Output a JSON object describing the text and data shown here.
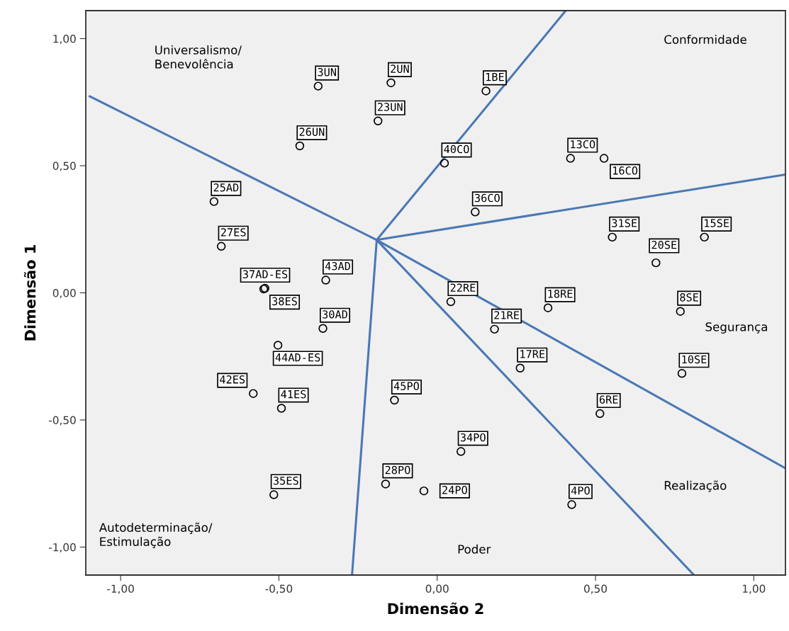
{
  "chart_data": {
    "type": "scatter",
    "xlabel": "Dimensão 2",
    "ylabel": "Dimensão 1",
    "xlim": [
      -1.11,
      1.1
    ],
    "ylim": [
      -1.11,
      1.11
    ],
    "xticks": [
      {
        "value": -1.0,
        "label": "-1,00"
      },
      {
        "value": -0.5,
        "label": "-0,50"
      },
      {
        "value": 0,
        "label": "0,00"
      },
      {
        "value": 0.5,
        "label": "0,50"
      },
      {
        "value": 1.0,
        "label": "1,00"
      }
    ],
    "yticks": [
      {
        "value": -1.0,
        "label": "-1,00"
      },
      {
        "value": -0.5,
        "label": "-0,50"
      },
      {
        "value": 0,
        "label": "0,00"
      },
      {
        "value": 0.5,
        "label": "0,50"
      },
      {
        "value": 1.0,
        "label": "1,00"
      }
    ],
    "grid": false,
    "line_style": "solid",
    "series": [
      {
        "marker": "circle",
        "color": "#000000",
        "x": [
          -0.376,
          -0.146,
          -0.187,
          -0.434,
          0.154,
          0.023,
          0.421,
          0.527,
          0.12,
          -0.705,
          -0.682,
          -0.352,
          -0.544,
          -0.548,
          0.553,
          0.844,
          0.691,
          0.043,
          0.35,
          0.181,
          0.768,
          -0.361,
          -0.503,
          0.262,
          0.773,
          -0.581,
          -0.492,
          -0.135,
          0.514,
          0.075,
          -0.163,
          -0.042,
          -0.516,
          0.425
        ],
        "values": [
          0.813,
          0.826,
          0.676,
          0.578,
          0.794,
          0.51,
          0.529,
          0.529,
          0.318,
          0.359,
          0.183,
          0.05,
          0.018,
          0.015,
          0.219,
          0.219,
          0.118,
          -0.035,
          -0.059,
          -0.143,
          -0.073,
          -0.14,
          -0.206,
          -0.296,
          -0.317,
          -0.396,
          -0.454,
          -0.422,
          -0.475,
          -0.624,
          -0.752,
          -0.779,
          -0.794,
          -0.833
        ]
      },
      {
        "type": "line",
        "color": "#4a78b5",
        "x": [
          -1.098,
          -0.191,
          1.1
        ],
        "values": [
          0.773,
          0.208,
          -0.69
        ]
      },
      {
        "type": "line",
        "color": "#4a78b5",
        "x": [
          -0.191,
          0.406
        ],
        "values": [
          0.208,
          1.11
        ]
      },
      {
        "type": "line",
        "color": "#4a78b5",
        "x": [
          -0.191,
          1.1
        ],
        "values": [
          0.208,
          0.465
        ]
      },
      {
        "type": "line",
        "color": "#4a78b5",
        "x": [
          -0.191,
          0.811
        ],
        "values": [
          0.208,
          -1.11
        ]
      },
      {
        "type": "line",
        "color": "#4a78b5",
        "x": [
          -0.269,
          -0.191
        ],
        "values": [
          -1.11,
          0.208
        ]
      }
    ],
    "annotations": [
      {
        "text": "3UN",
        "x": -0.376,
        "y": 0.813
      },
      {
        "text": "2UN",
        "x": -0.146,
        "y": 0.826
      },
      {
        "text": "23UN",
        "x": -0.187,
        "y": 0.676
      },
      {
        "text": "26UN",
        "x": -0.434,
        "y": 0.578
      },
      {
        "text": "1BE",
        "x": 0.154,
        "y": 0.794
      },
      {
        "text": "40CO",
        "x": 0.023,
        "y": 0.51
      },
      {
        "text": "13CO",
        "x": 0.421,
        "y": 0.529
      },
      {
        "text": "16CO",
        "x": 0.527,
        "y": 0.529
      },
      {
        "text": "36CO",
        "x": 0.12,
        "y": 0.318
      },
      {
        "text": "25AD",
        "x": -0.705,
        "y": 0.359
      },
      {
        "text": "27ES",
        "x": -0.682,
        "y": 0.183
      },
      {
        "text": "43AD",
        "x": -0.352,
        "y": 0.05
      },
      {
        "text": "37AD-ES",
        "x": -0.544,
        "y": 0.018
      },
      {
        "text": "38ES",
        "x": -0.548,
        "y": 0.015
      },
      {
        "text": "31SE",
        "x": 0.553,
        "y": 0.219
      },
      {
        "text": "15SE",
        "x": 0.844,
        "y": 0.219
      },
      {
        "text": "20SE",
        "x": 0.691,
        "y": 0.118
      },
      {
        "text": "22RE",
        "x": 0.043,
        "y": -0.035
      },
      {
        "text": "18RE",
        "x": 0.35,
        "y": -0.059
      },
      {
        "text": "21RE",
        "x": 0.181,
        "y": -0.143
      },
      {
        "text": "8SE",
        "x": 0.768,
        "y": -0.073
      },
      {
        "text": "30AD",
        "x": -0.361,
        "y": -0.14
      },
      {
        "text": "44AD-ES",
        "x": -0.503,
        "y": -0.206
      },
      {
        "text": "17RE",
        "x": 0.262,
        "y": -0.296
      },
      {
        "text": "10SE",
        "x": 0.773,
        "y": -0.317
      },
      {
        "text": "42ES",
        "x": -0.581,
        "y": -0.396
      },
      {
        "text": "41ES",
        "x": -0.492,
        "y": -0.454
      },
      {
        "text": "45PO",
        "x": -0.135,
        "y": -0.422
      },
      {
        "text": "6RE",
        "x": 0.514,
        "y": -0.475
      },
      {
        "text": "34PO",
        "x": 0.075,
        "y": -0.624
      },
      {
        "text": "28PO",
        "x": -0.163,
        "y": -0.752
      },
      {
        "text": "24PO",
        "x": -0.042,
        "y": -0.779
      },
      {
        "text": "35ES",
        "x": -0.516,
        "y": -0.794
      },
      {
        "text": "4PO",
        "x": 0.425,
        "y": -0.833
      },
      "Universalismo/\nBenevolência",
      "Conformidade",
      "Segurança",
      "Realização",
      "Poder",
      "Autodeterminação/\nEstimulação"
    ]
  }
}
